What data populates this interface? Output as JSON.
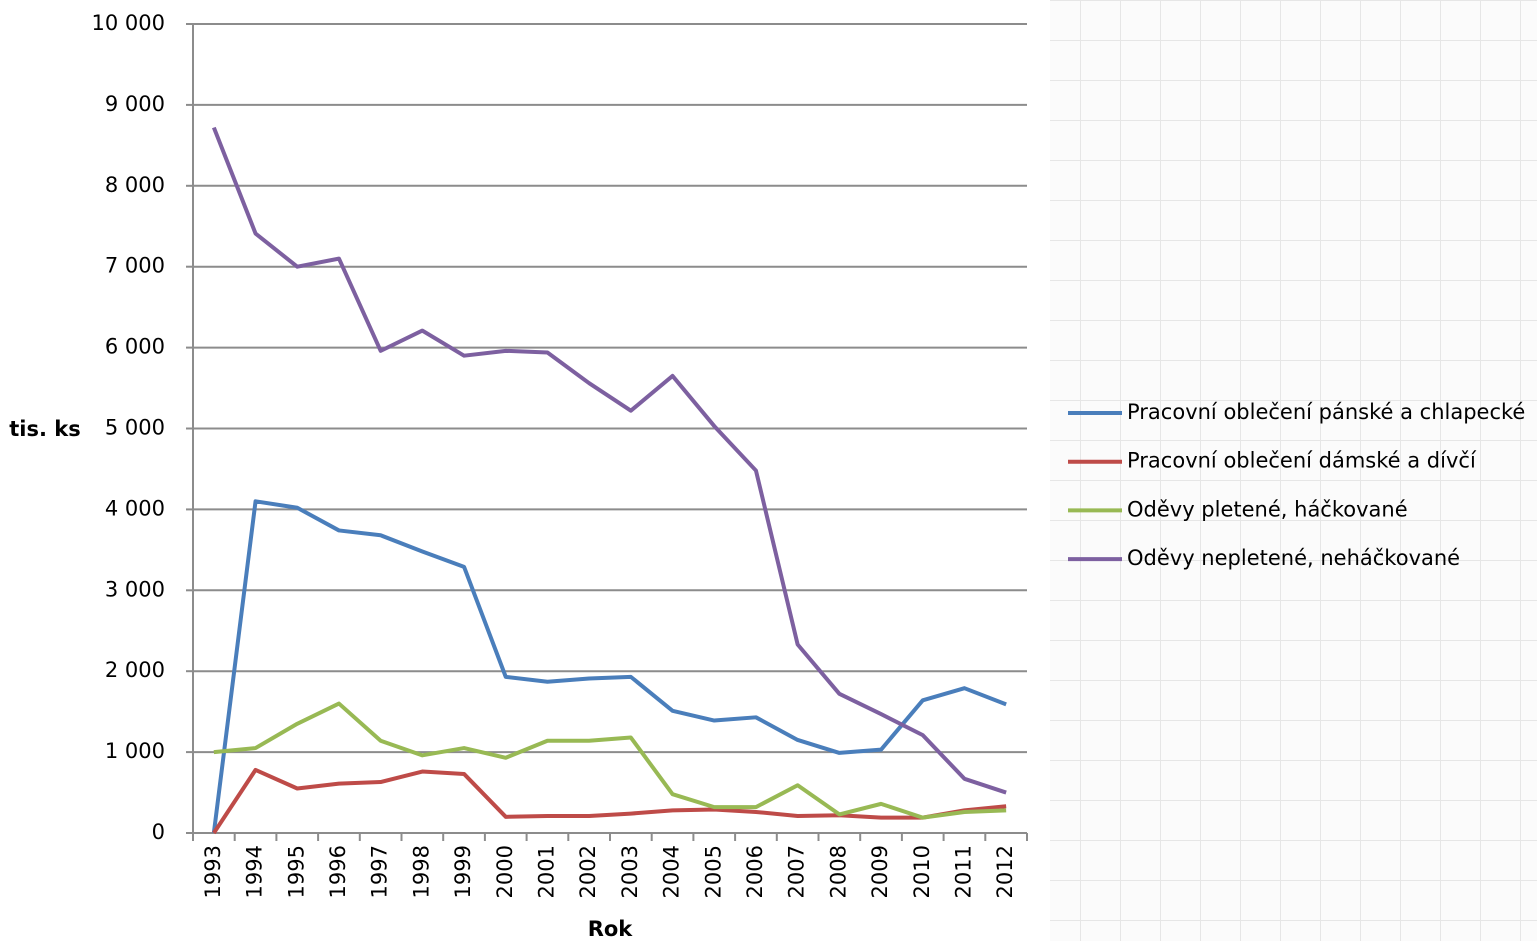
{
  "chart_data": {
    "type": "line",
    "y_label": "tis. ks",
    "x_label": "Rok",
    "categories": [
      "1993",
      "1994",
      "1995",
      "1996",
      "1997",
      "1998",
      "1999",
      "2000",
      "2001",
      "2002",
      "2003",
      "2004",
      "2005",
      "2006",
      "2007",
      "2008",
      "2009",
      "2010",
      "2011",
      "2012"
    ],
    "series": [
      {
        "name": "Pracovní oblečení pánské a chlapecké",
        "color": "#4a7ebb",
        "values": [
          0,
          4100,
          4020,
          3740,
          3680,
          3480,
          3290,
          1930,
          1870,
          1910,
          1930,
          1510,
          1390,
          1430,
          1150,
          990,
          1030,
          1640,
          1790,
          1590
        ]
      },
      {
        "name": "Pracovní oblečení dámské a dívčí",
        "color": "#be4b48",
        "values": [
          0,
          780,
          550,
          610,
          630,
          760,
          730,
          200,
          210,
          210,
          240,
          280,
          290,
          260,
          210,
          220,
          190,
          190,
          280,
          330
        ]
      },
      {
        "name": "Oděvy pletené, háčkované",
        "color": "#98b954",
        "values": [
          1000,
          1050,
          1350,
          1600,
          1140,
          960,
          1050,
          930,
          1140,
          1140,
          1180,
          480,
          320,
          320,
          590,
          230,
          360,
          190,
          260,
          280
        ]
      },
      {
        "name": "Oděvy nepletené, neháčkované",
        "color": "#7d60a0",
        "values": [
          8720,
          7410,
          7000,
          7100,
          5960,
          6210,
          5900,
          5960,
          5940,
          5560,
          5220,
          5650,
          5030,
          4480,
          2330,
          1720,
          1470,
          1210,
          670,
          500
        ]
      }
    ],
    "ylim": [
      0,
      10000
    ],
    "yticks": [
      0,
      {
        "value": 1000,
        "label": "1 000"
      },
      {
        "value": 2000,
        "label": "2 000"
      },
      {
        "value": 3000,
        "label": "3 000"
      },
      {
        "value": 4000,
        "label": "4 000"
      },
      {
        "value": 5000,
        "label": "5 000"
      },
      {
        "value": 6000,
        "label": "6 000"
      },
      {
        "value": 7000,
        "label": "7 000"
      },
      {
        "value": 8000,
        "label": "8 000"
      },
      {
        "value": 9000,
        "label": "9 000"
      },
      {
        "value": 10000,
        "label": "10 000"
      }
    ],
    "grid": true,
    "legend": "right"
  }
}
